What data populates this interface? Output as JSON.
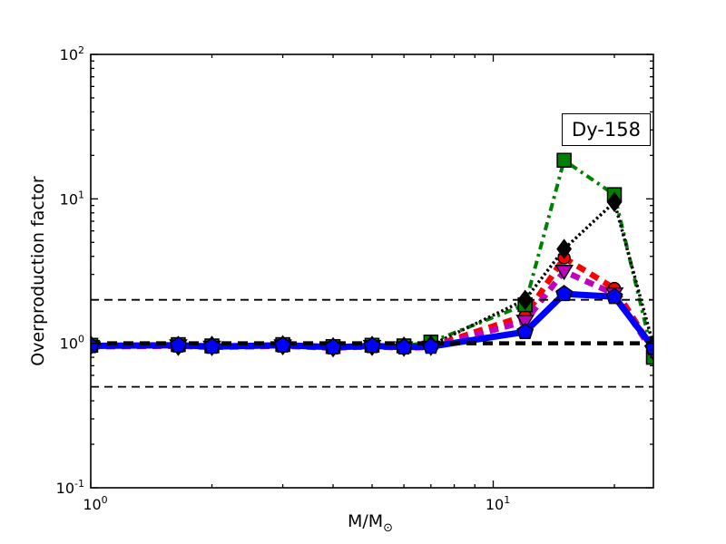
{
  "chart_data": {
    "type": "line",
    "title": "",
    "ylabel": "Overproduction factor",
    "xlabel_main": "M/M",
    "xlabel_sub": "⊙",
    "annotation": {
      "text": "Dy-158"
    },
    "x_scale": "log",
    "y_scale": "log",
    "xlim": [
      1,
      25
    ],
    "ylim": [
      0.1,
      100
    ],
    "grid": false,
    "legend": "none",
    "x": [
      1,
      1.65,
      2,
      3,
      4,
      5,
      6,
      7,
      12,
      15,
      20,
      25
    ],
    "series": [
      {
        "name": "green-dashdot-squares",
        "color": "#008000",
        "line_style": "dashdot",
        "width": 4,
        "marker": "square",
        "values": [
          0.97,
          0.98,
          0.96,
          0.98,
          0.95,
          0.97,
          0.96,
          1.02,
          1.85,
          18.5,
          10.7,
          0.8
        ]
      },
      {
        "name": "black-dotted-diamonds",
        "color": "#000000",
        "line_style": "dotted",
        "width": 3.5,
        "marker": "diamond",
        "values": [
          0.97,
          0.96,
          0.96,
          0.97,
          0.94,
          0.96,
          0.95,
          0.97,
          2.0,
          4.5,
          9.5,
          0.97
        ]
      },
      {
        "name": "red-dashed-circles",
        "color": "#ff0000",
        "line_style": "dashed",
        "width": 6.5,
        "marker": "circle",
        "values": [
          0.96,
          0.96,
          0.95,
          0.96,
          0.94,
          0.95,
          0.94,
          0.95,
          1.55,
          3.9,
          2.4,
          0.9
        ]
      },
      {
        "name": "magenta-dashed-triangles",
        "color": "#bf00bf",
        "line_style": "dashed",
        "width": 6.5,
        "marker": "triangle-down",
        "values": [
          0.95,
          0.96,
          0.94,
          0.96,
          0.93,
          0.95,
          0.93,
          0.94,
          1.42,
          3.15,
          2.2,
          0.87
        ]
      },
      {
        "name": "blue-solid-pentagons",
        "color": "#0000ff",
        "line_style": "solid",
        "width": 7,
        "marker": "pentagon",
        "values": [
          0.96,
          0.97,
          0.95,
          0.97,
          0.94,
          0.96,
          0.94,
          0.95,
          1.2,
          2.2,
          2.1,
          0.93
        ]
      }
    ],
    "reference_lines": [
      {
        "y": 2.0,
        "color": "#000000",
        "style": "dashed",
        "width": 1.8
      },
      {
        "y": 1.0,
        "color": "#000000",
        "style": "dashed",
        "width": 4.5
      },
      {
        "y": 0.5,
        "color": "#000000",
        "style": "dashed",
        "width": 1.8
      }
    ],
    "x_ticks": [
      {
        "value": 1,
        "base": "10",
        "exp": "0"
      },
      {
        "value": 10,
        "base": "10",
        "exp": "1"
      }
    ],
    "y_ticks": [
      {
        "value": 100,
        "base": "10",
        "exp": "2"
      },
      {
        "value": 10,
        "base": "10",
        "exp": "1"
      },
      {
        "value": 1,
        "base": "10",
        "exp": "0"
      },
      {
        "value": 0.1,
        "base": "10",
        "exp": "-1"
      }
    ]
  }
}
